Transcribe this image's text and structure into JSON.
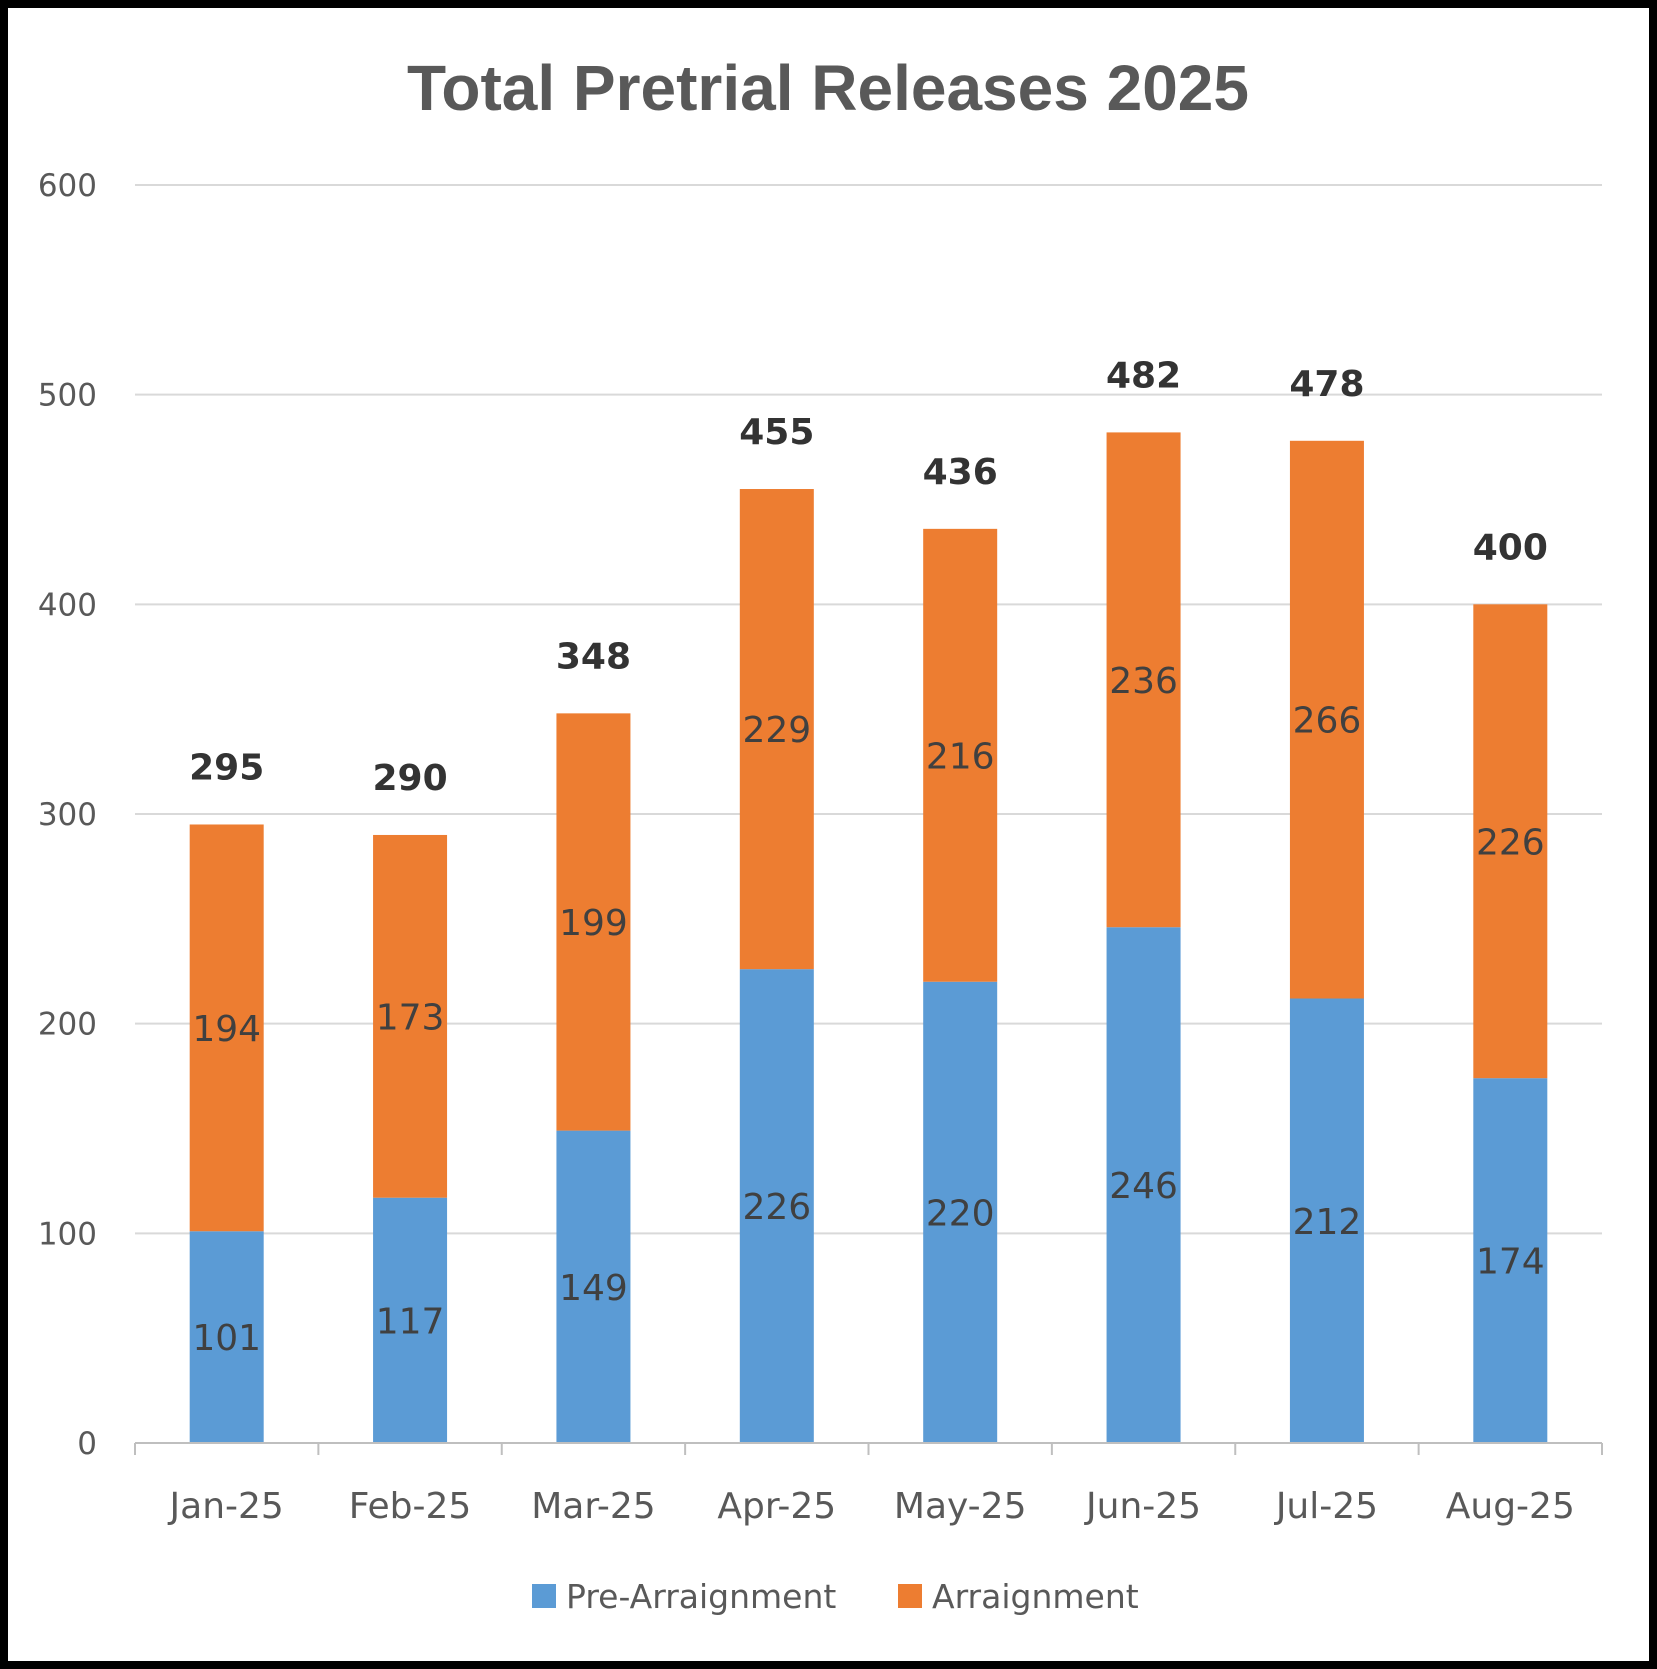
{
  "chart_data": {
    "type": "bar",
    "stacked": true,
    "title": "Total Pretrial Releases 2025",
    "categories": [
      "Jan-25",
      "Feb-25",
      "Mar-25",
      "Apr-25",
      "May-25",
      "Jun-25",
      "Jul-25",
      "Aug-25"
    ],
    "series": [
      {
        "name": "Pre-Arraignment",
        "color": "#5b9bd5",
        "values": [
          101,
          117,
          149,
          226,
          220,
          246,
          212,
          174
        ]
      },
      {
        "name": "Arraignment",
        "color": "#ed7d31",
        "values": [
          194,
          173,
          199,
          229,
          216,
          236,
          266,
          226
        ]
      }
    ],
    "totals": [
      295,
      290,
      348,
      455,
      436,
      482,
      478,
      400
    ],
    "ylim": [
      0,
      600
    ],
    "yticks": [
      0,
      100,
      200,
      300,
      400,
      500,
      600
    ],
    "grid": true,
    "legend_position": "bottom"
  }
}
